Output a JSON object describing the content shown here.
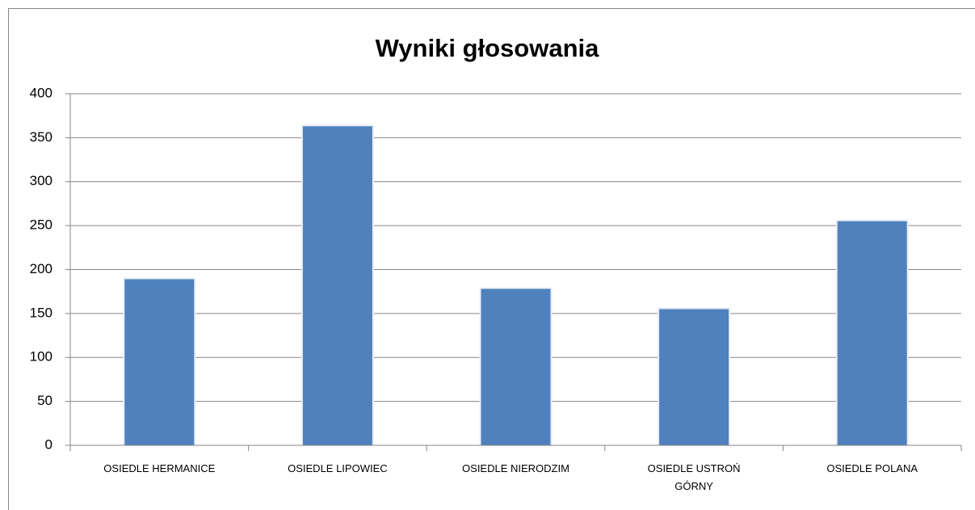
{
  "chart_data": {
    "type": "bar",
    "title": "Wyniki głosowania",
    "categories": [
      "OSIEDLE HERMANICE",
      "OSIEDLE LIPOWIEC",
      "OSIEDLE NIERODZIM",
      "OSIEDLE USTROŃ GÓRNY",
      "OSIEDLE POLANA"
    ],
    "values": [
      189,
      363,
      178,
      155,
      255
    ],
    "color": "#4f81bd",
    "ylim": [
      0,
      400
    ],
    "yticks": [
      0,
      50,
      100,
      150,
      200,
      250,
      300,
      350,
      400
    ],
    "grid": true
  }
}
